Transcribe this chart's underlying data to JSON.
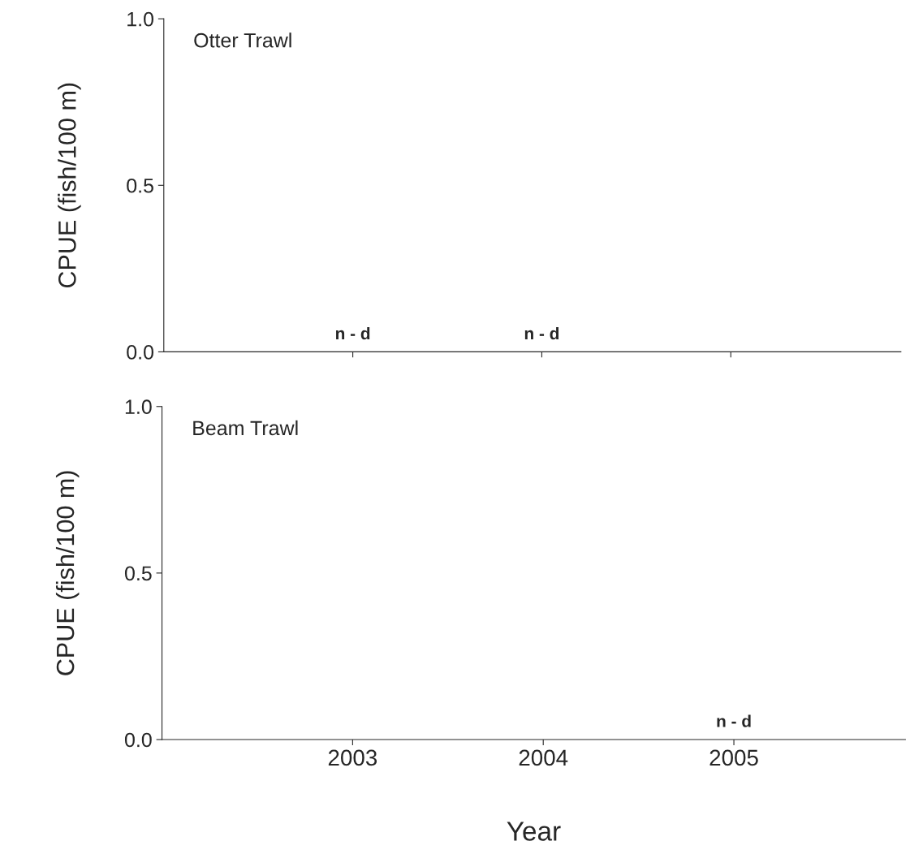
{
  "chart_data": [
    {
      "type": "bar",
      "categories": [
        "2003",
        "2004",
        "2005"
      ],
      "values": [
        0,
        0,
        null
      ],
      "ylabel": "CPUE (fish/100 m)",
      "ylim": [
        0,
        1
      ],
      "yticks": [
        {
          "value": 0,
          "label": "0.0"
        },
        {
          "value": 0.5,
          "label": "0.5"
        },
        {
          "value": 1,
          "label": "1.0"
        }
      ],
      "tick_labels": "y",
      "grid": false,
      "legend": false,
      "annotations": [
        "Otter Trawl",
        {
          "text": "n - d",
          "x": "2003",
          "y": 0
        },
        {
          "text": "n - d",
          "x": "2004",
          "y": 0
        }
      ]
    },
    {
      "type": "bar",
      "categories": [
        "2003",
        "2004",
        "2005"
      ],
      "values": [
        null,
        null,
        0
      ],
      "ylabel": "CPUE (fish/100 m)",
      "xlabel": "Year",
      "ylim": [
        0,
        1
      ],
      "yticks": [
        {
          "value": 0,
          "label": "0.0"
        },
        {
          "value": 0.5,
          "label": "0.5"
        },
        {
          "value": 1,
          "label": "1.0"
        }
      ],
      "grid": false,
      "legend": false,
      "annotations": [
        "Beam Trawl",
        {
          "text": "n - d",
          "x": "2005",
          "y": 0
        }
      ]
    }
  ]
}
